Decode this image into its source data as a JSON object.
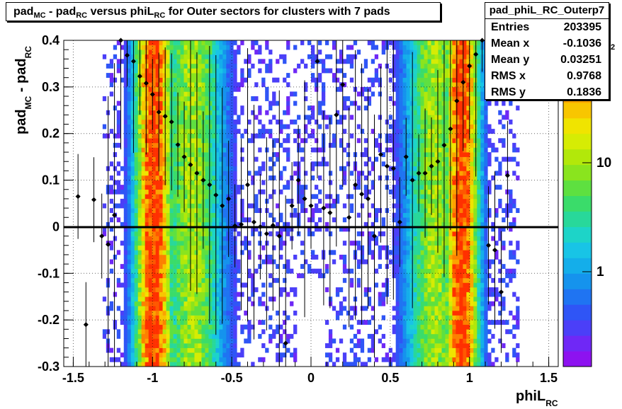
{
  "title": {
    "prefix": "pad",
    "sub1": "MC",
    "mid1": " - pad",
    "sub2": "RC",
    "mid2": " versus phiL",
    "sub3": "RC",
    "suffix": " for Outer sectors for clusters with 7 pads"
  },
  "stats_box": {
    "name": "pad_phiL_RC_Outerp7",
    "rows": [
      {
        "key": "Entries",
        "value": "203395"
      },
      {
        "key": "Mean x",
        "value": "-0.1036"
      },
      {
        "key": "Mean y",
        "value": "0.03251"
      },
      {
        "key": "RMS x",
        "value": "0.9768"
      },
      {
        "key": "RMS y",
        "value": "0.1836"
      }
    ]
  },
  "colors": {
    "palette": [
      "#8d12f0",
      "#6f28f6",
      "#4b3ff8",
      "#2f55f6",
      "#1f74f2",
      "#1593ed",
      "#14aeea",
      "#18c4e6",
      "#1dd4c8",
      "#28d89a",
      "#3adc6a",
      "#5ee040",
      "#8ae41e",
      "#b2e80a",
      "#d6ec04",
      "#f0e400",
      "#f8c600",
      "#fba400",
      "#fd8000",
      "#fe5800",
      "#ff3000"
    ],
    "profile": "#000000",
    "zero_line": "#000000"
  },
  "chart_data": {
    "type": "heatmap",
    "title": "pad_MC - pad_RC versus phiL_RC for Outer sectors for clusters with 7 pads",
    "xlabel": "phiL_RC",
    "ylabel": "pad_MC - pad_RC",
    "xlim": [
      -1.56,
      1.56
    ],
    "ylim": [
      -0.3,
      0.4
    ],
    "x_ticks": [
      -1.5,
      -1,
      -0.5,
      0,
      0.5,
      1,
      1.5
    ],
    "x_tick_labels": [
      "-1.5",
      "-1",
      "-0.5",
      "0",
      "0.5",
      "1",
      "1.5"
    ],
    "y_ticks": [
      0.4,
      0.3,
      0.2,
      0.1,
      0,
      -0.1,
      -0.2,
      -0.3
    ],
    "y_tick_labels": [
      "0.4",
      "0.3",
      "0.2",
      "0.1",
      "0",
      "-0.1",
      "-0.2",
      "-0.3"
    ],
    "colorbar": {
      "scale": "log",
      "labels": [
        "1",
        "10"
      ],
      "exponent_label": "2"
    },
    "grid": true,
    "density_bands": [
      {
        "x_center": -0.99,
        "x_width": 0.13,
        "peak": "high"
      },
      {
        "x_center": -0.75,
        "x_width": 0.22,
        "peak": "medium"
      },
      {
        "x_center": 0.95,
        "x_width": 0.12,
        "peak": "high"
      },
      {
        "x_center": 0.78,
        "x_width": 0.2,
        "peak": "medium"
      }
    ],
    "profile_points": [
      {
        "x": -1.47,
        "y": 0.065
      },
      {
        "x": -1.42,
        "y": -0.21
      },
      {
        "x": -1.37,
        "y": 0.058
      },
      {
        "x": -1.32,
        "y": -0.02
      },
      {
        "x": -1.28,
        "y": -0.038
      },
      {
        "x": -1.24,
        "y": 0.025
      },
      {
        "x": -1.2,
        "y": 0.4
      },
      {
        "x": -1.16,
        "y": 0.368
      },
      {
        "x": -1.12,
        "y": 0.355
      },
      {
        "x": -1.08,
        "y": 0.323
      },
      {
        "x": -1.04,
        "y": 0.308
      },
      {
        "x": -1.0,
        "y": 0.284
      },
      {
        "x": -0.96,
        "y": 0.246
      },
      {
        "x": -0.92,
        "y": 0.237
      },
      {
        "x": -0.88,
        "y": 0.225
      },
      {
        "x": -0.84,
        "y": 0.176
      },
      {
        "x": -0.8,
        "y": 0.15
      },
      {
        "x": -0.76,
        "y": 0.133
      },
      {
        "x": -0.72,
        "y": 0.115
      },
      {
        "x": -0.68,
        "y": 0.1
      },
      {
        "x": -0.64,
        "y": 0.09
      },
      {
        "x": -0.6,
        "y": 0.068
      },
      {
        "x": -0.56,
        "y": 0.045
      },
      {
        "x": -0.52,
        "y": 0.06
      },
      {
        "x": -0.48,
        "y": 0.002
      },
      {
        "x": -0.44,
        "y": 0.005
      },
      {
        "x": -0.4,
        "y": 0.09
      },
      {
        "x": -0.36,
        "y": 0.01
      },
      {
        "x": -0.32,
        "y": 0.0
      },
      {
        "x": -0.28,
        "y": -0.015
      },
      {
        "x": -0.24,
        "y": 0.003
      },
      {
        "x": -0.2,
        "y": -0.02
      },
      {
        "x": -0.16,
        "y": -0.25
      },
      {
        "x": -0.12,
        "y": 0.045
      },
      {
        "x": -0.08,
        "y": 0.1
      },
      {
        "x": -0.04,
        "y": 0.06
      },
      {
        "x": 0.0,
        "y": 0.045
      },
      {
        "x": 0.04,
        "y": 0.355
      },
      {
        "x": 0.08,
        "y": 0.04
      },
      {
        "x": 0.12,
        "y": 0.03
      },
      {
        "x": 0.16,
        "y": 0.24
      },
      {
        "x": 0.2,
        "y": 0.305
      },
      {
        "x": 0.24,
        "y": 0.02
      },
      {
        "x": 0.28,
        "y": 0.09
      },
      {
        "x": 0.32,
        "y": 0.07
      },
      {
        "x": 0.36,
        "y": 0.06
      },
      {
        "x": 0.4,
        "y": -0.02
      },
      {
        "x": 0.44,
        "y": 0.155
      },
      {
        "x": 0.48,
        "y": 0.13
      },
      {
        "x": 0.52,
        "y": 0.125
      },
      {
        "x": 0.56,
        "y": 0.01
      },
      {
        "x": 0.6,
        "y": 0.15
      },
      {
        "x": 0.64,
        "y": 0.1
      },
      {
        "x": 0.68,
        "y": 0.115
      },
      {
        "x": 0.72,
        "y": 0.115
      },
      {
        "x": 0.76,
        "y": 0.13
      },
      {
        "x": 0.8,
        "y": 0.14
      },
      {
        "x": 0.84,
        "y": 0.175
      },
      {
        "x": 0.88,
        "y": 0.21
      },
      {
        "x": 0.92,
        "y": 0.27
      },
      {
        "x": 0.96,
        "y": 0.31
      },
      {
        "x": 1.0,
        "y": 0.345
      },
      {
        "x": 1.04,
        "y": 0.37
      },
      {
        "x": 1.08,
        "y": 0.4
      },
      {
        "x": 1.12,
        "y": -0.04
      },
      {
        "x": 1.16,
        "y": -0.05
      },
      {
        "x": 1.2,
        "y": -0.14
      },
      {
        "x": 1.24,
        "y": 0.11
      }
    ]
  }
}
